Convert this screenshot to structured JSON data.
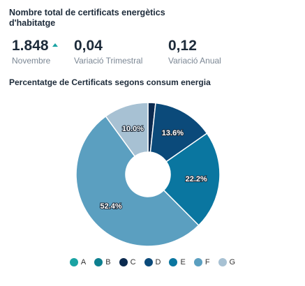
{
  "header": {
    "title": "Nombre total de certificats energètics d'habitatge"
  },
  "kpis": [
    {
      "value": "1.848",
      "label": "Novembre",
      "trend": "up"
    },
    {
      "value": "0,04",
      "label": "Variació Trimestral"
    },
    {
      "value": "0,12",
      "label": "Variació Anual"
    }
  ],
  "chart_data": {
    "type": "pie",
    "variant": "donut",
    "title": "Percentatge de Certificats segons consum energia",
    "categories": [
      "A",
      "B",
      "C",
      "D",
      "E",
      "F",
      "G"
    ],
    "values": [
      0.0,
      0.0,
      1.7,
      13.6,
      22.2,
      52.4,
      10.0
    ],
    "data_labels": [
      "",
      "",
      "",
      "13.6%",
      "22.2%",
      "52.4%",
      "10.0%"
    ],
    "colors": [
      "#1aa3a3",
      "#0d7f8f",
      "#0b2a4f",
      "#0b4a7a",
      "#0a76a0",
      "#5b9fc0",
      "#a7c1d3"
    ],
    "legend_position": "bottom"
  }
}
